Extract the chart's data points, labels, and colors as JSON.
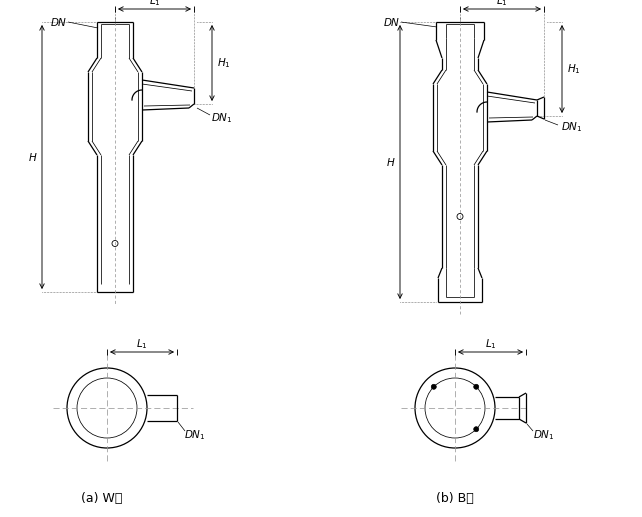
{
  "bg_color": "#ffffff",
  "line_color": "#000000",
  "center_line_color": "#999999",
  "fig_width": 6.42,
  "fig_height": 5.17
}
